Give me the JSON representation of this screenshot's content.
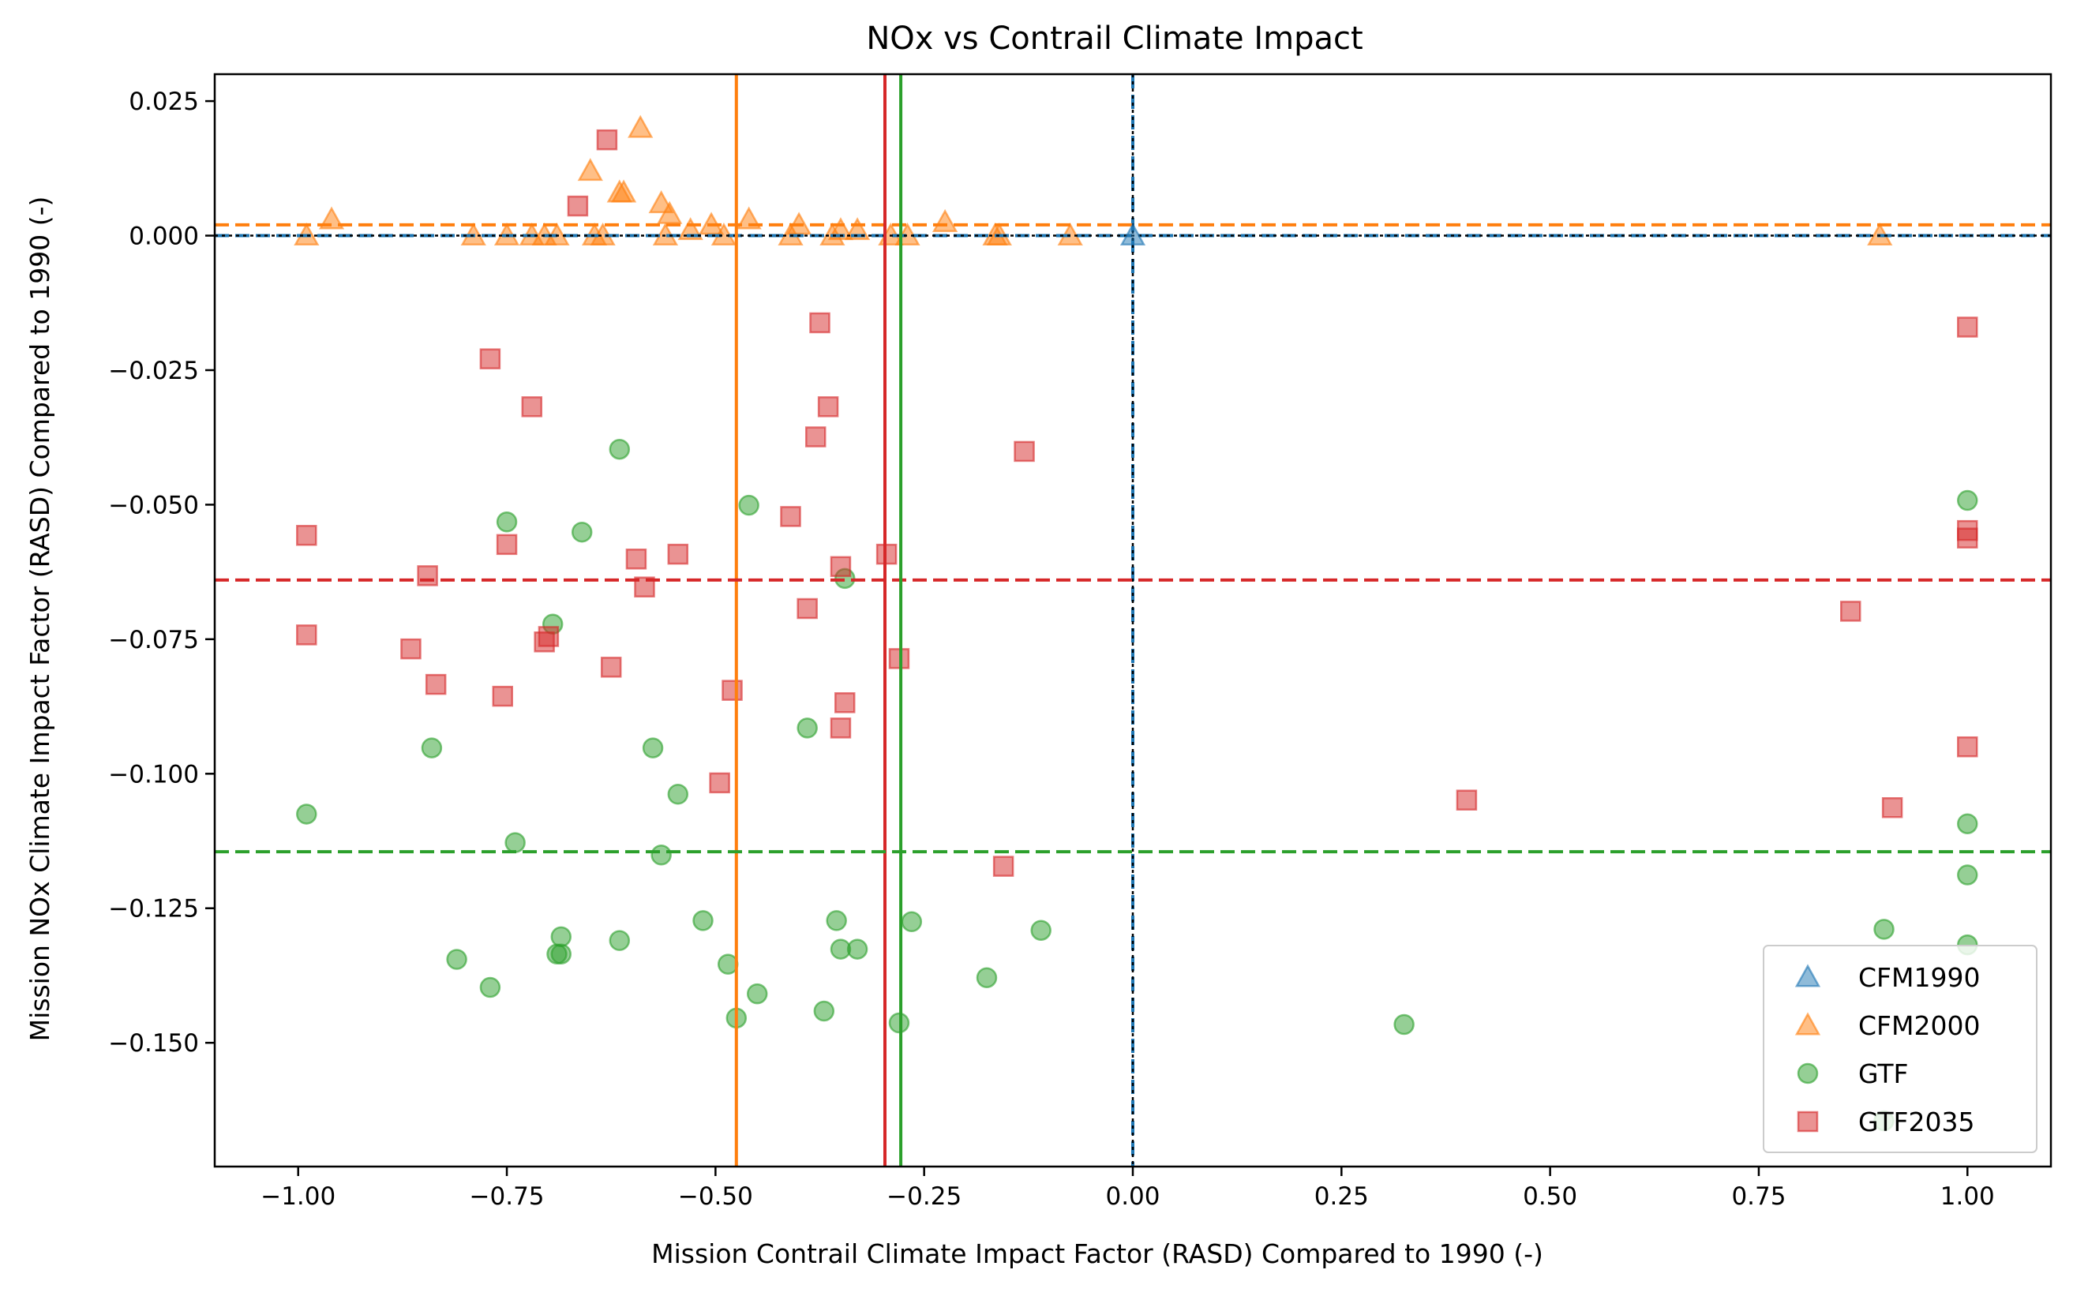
{
  "chart_data": {
    "type": "scatter",
    "title": "NOx vs Contrail Climate Impact",
    "xlabel": "Mission Contrail Climate Impact Factor (RASD) Compared to 1990 (-)",
    "ylabel": "Mission NOx Climate Impact Factor (RASD) Compared to 1990 (-)",
    "xlim": [
      -1.1,
      1.1
    ],
    "ylim": [
      -0.173,
      0.03
    ],
    "grid": false,
    "legend_position": "lower right",
    "x_ticks": [
      {
        "value": -1.0,
        "label": "−1.00"
      },
      {
        "value": -0.75,
        "label": "−0.75"
      },
      {
        "value": -0.5,
        "label": "−0.50"
      },
      {
        "value": -0.25,
        "label": "−0.25"
      },
      {
        "value": 0.0,
        "label": "0.00"
      },
      {
        "value": 0.25,
        "label": "0.25"
      },
      {
        "value": 0.5,
        "label": "0.50"
      },
      {
        "value": 0.75,
        "label": "0.75"
      },
      {
        "value": 1.0,
        "label": "1.00"
      }
    ],
    "y_ticks": [
      {
        "value": 0.025,
        "label": "0.025"
      },
      {
        "value": 0.0,
        "label": "0.000"
      },
      {
        "value": -0.025,
        "label": "−0.025"
      },
      {
        "value": -0.05,
        "label": "−0.050"
      },
      {
        "value": -0.075,
        "label": "−0.075"
      },
      {
        "value": -0.1,
        "label": "−0.100"
      },
      {
        "value": -0.125,
        "label": "−0.125"
      },
      {
        "value": -0.15,
        "label": "−0.150"
      }
    ],
    "series": [
      {
        "name": "CFM1990",
        "marker": "triangle",
        "color": "#1f77b4",
        "points": [
          [
            0.0,
            0.0
          ]
        ]
      },
      {
        "name": "CFM2000",
        "marker": "triangle",
        "color": "#ff7f0e",
        "points": [
          [
            -0.99,
            0.0
          ],
          [
            -0.96,
            0.003
          ],
          [
            -0.79,
            0.0
          ],
          [
            -0.75,
            0.0
          ],
          [
            -0.72,
            0.0
          ],
          [
            -0.705,
            0.0
          ],
          [
            -0.69,
            0.0
          ],
          [
            -0.65,
            0.012
          ],
          [
            -0.645,
            0.0
          ],
          [
            -0.635,
            0.0
          ],
          [
            -0.615,
            0.008
          ],
          [
            -0.61,
            0.008
          ],
          [
            -0.59,
            0.02
          ],
          [
            -0.565,
            0.006
          ],
          [
            -0.56,
            0.0
          ],
          [
            -0.555,
            0.004
          ],
          [
            -0.53,
            0.001
          ],
          [
            -0.505,
            0.002
          ],
          [
            -0.49,
            0.0
          ],
          [
            -0.46,
            0.003
          ],
          [
            -0.41,
            0.0
          ],
          [
            -0.4,
            0.002
          ],
          [
            -0.36,
            0.0
          ],
          [
            -0.35,
            0.001
          ],
          [
            -0.33,
            0.001
          ],
          [
            -0.29,
            0.0
          ],
          [
            -0.27,
            0.0
          ],
          [
            -0.225,
            0.0025
          ],
          [
            -0.165,
            0.0
          ],
          [
            -0.16,
            0.0
          ],
          [
            -0.075,
            0.0
          ],
          [
            0.895,
            0.0
          ]
        ]
      },
      {
        "name": "GTF",
        "marker": "circle",
        "color": "#2ca02c",
        "points": [
          [
            -0.99,
            -0.1075
          ],
          [
            -0.84,
            -0.0952
          ],
          [
            -0.81,
            -0.1345
          ],
          [
            -0.77,
            -0.1397
          ],
          [
            -0.75,
            -0.0532
          ],
          [
            -0.74,
            -0.1128
          ],
          [
            -0.695,
            -0.0722
          ],
          [
            -0.69,
            -0.1335
          ],
          [
            -0.685,
            -0.1335
          ],
          [
            -0.685,
            -0.1303
          ],
          [
            -0.66,
            -0.0551
          ],
          [
            -0.615,
            -0.0397
          ],
          [
            -0.615,
            -0.131
          ],
          [
            -0.575,
            -0.0952
          ],
          [
            -0.565,
            -0.1151
          ],
          [
            -0.545,
            -0.1038
          ],
          [
            -0.515,
            -0.1273
          ],
          [
            -0.485,
            -0.1354
          ],
          [
            -0.475,
            -0.1454
          ],
          [
            -0.46,
            -0.0501
          ],
          [
            -0.45,
            -0.1409
          ],
          [
            -0.39,
            -0.0915
          ],
          [
            -0.37,
            -0.1441
          ],
          [
            -0.355,
            -0.1273
          ],
          [
            -0.35,
            -0.1326
          ],
          [
            -0.345,
            -0.0637
          ],
          [
            -0.33,
            -0.1326
          ],
          [
            -0.28,
            -0.1463
          ],
          [
            -0.265,
            -0.1275
          ],
          [
            -0.175,
            -0.1379
          ],
          [
            -0.11,
            -0.1291
          ],
          [
            0.325,
            -0.1466
          ],
          [
            0.9,
            -0.1289
          ],
          [
            0.9,
            -0.1645
          ],
          [
            1.0,
            -0.0492
          ],
          [
            1.0,
            -0.1093
          ],
          [
            1.0,
            -0.1188
          ],
          [
            1.0,
            -0.1318
          ]
        ]
      },
      {
        "name": "GTF2035",
        "marker": "square",
        "color": "#d62728",
        "points": [
          [
            -0.99,
            -0.0557
          ],
          [
            -0.99,
            -0.0742
          ],
          [
            -0.865,
            -0.0768
          ],
          [
            -0.845,
            -0.0632
          ],
          [
            -0.835,
            -0.0834
          ],
          [
            -0.77,
            -0.0229
          ],
          [
            -0.755,
            -0.0856
          ],
          [
            -0.75,
            -0.0574
          ],
          [
            -0.72,
            -0.0318
          ],
          [
            -0.705,
            -0.0755
          ],
          [
            -0.7,
            -0.0745
          ],
          [
            -0.665,
            0.0055
          ],
          [
            -0.63,
            0.0178
          ],
          [
            -0.625,
            -0.0802
          ],
          [
            -0.595,
            -0.0601
          ],
          [
            -0.585,
            -0.0653
          ],
          [
            -0.545,
            -0.0592
          ],
          [
            -0.495,
            -0.1017
          ],
          [
            -0.48,
            -0.0845
          ],
          [
            -0.41,
            -0.0522
          ],
          [
            -0.39,
            -0.0693
          ],
          [
            -0.375,
            -0.0162
          ],
          [
            -0.38,
            -0.0374
          ],
          [
            -0.365,
            -0.0318
          ],
          [
            -0.35,
            -0.0615
          ],
          [
            -0.35,
            -0.0915
          ],
          [
            -0.345,
            -0.0868
          ],
          [
            -0.295,
            -0.0592
          ],
          [
            -0.28,
            -0.0786
          ],
          [
            -0.155,
            -0.1172
          ],
          [
            -0.13,
            -0.0401
          ],
          [
            0.4,
            -0.1049
          ],
          [
            0.86,
            -0.0698
          ],
          [
            0.91,
            -0.1063
          ],
          [
            1.0,
            -0.017
          ],
          [
            1.0,
            -0.0548
          ],
          [
            1.0,
            -0.0562
          ],
          [
            1.0,
            -0.095
          ]
        ]
      }
    ],
    "reference_lines": [
      {
        "orientation": "vertical",
        "value": 0.0,
        "color": "#1f77b4",
        "style": "dashed"
      },
      {
        "orientation": "horizontal",
        "value": 0.0,
        "color": "#1f77b4",
        "style": "dashed"
      },
      {
        "orientation": "vertical",
        "value": 0.0,
        "color": "#000000",
        "style": "dotted"
      },
      {
        "orientation": "horizontal",
        "value": 0.0,
        "color": "#000000",
        "style": "dotted"
      },
      {
        "orientation": "vertical",
        "value": -0.475,
        "color": "#ff7f0e",
        "style": "solid"
      },
      {
        "orientation": "horizontal",
        "value": 0.002,
        "color": "#ff7f0e",
        "style": "dashed"
      },
      {
        "orientation": "vertical",
        "value": -0.297,
        "color": "#d62728",
        "style": "solid"
      },
      {
        "orientation": "horizontal",
        "value": -0.064,
        "color": "#d62728",
        "style": "dashed"
      },
      {
        "orientation": "vertical",
        "value": -0.278,
        "color": "#2ca02c",
        "style": "solid"
      },
      {
        "orientation": "horizontal",
        "value": -0.1145,
        "color": "#2ca02c",
        "style": "dashed"
      }
    ]
  }
}
